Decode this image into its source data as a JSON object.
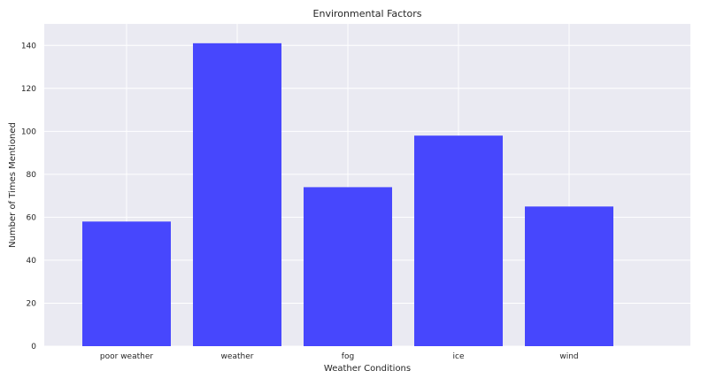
{
  "chart_data": {
    "type": "bar",
    "title": "Environmental Factors",
    "xlabel": "Weather Conditions",
    "ylabel": "Number of Times Mentioned",
    "categories": [
      "poor weather",
      "weather",
      "fog",
      "ice",
      "wind"
    ],
    "values": [
      58,
      141,
      74,
      98,
      65
    ],
    "ylim": [
      0,
      150
    ],
    "yticks": [
      0,
      20,
      40,
      60,
      80,
      100,
      120,
      140
    ],
    "grid": true,
    "legend": "none",
    "colors": {
      "bar": "#4747fd",
      "plot_background": "#eaeaf2",
      "grid": "#ffffff"
    }
  }
}
